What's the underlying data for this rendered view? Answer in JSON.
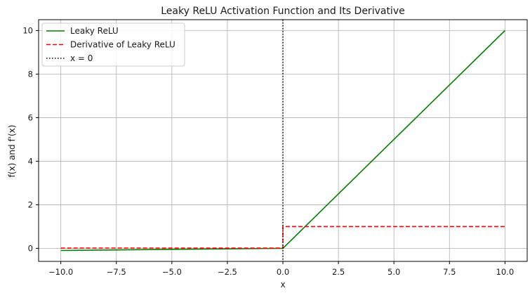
{
  "chart_data": {
    "type": "line",
    "title": "Leaky ReLU Activation Function and Its Derivative",
    "xlabel": "x",
    "ylabel": "f(x) and f'(x)",
    "xlim": [
      -11.0,
      11.0
    ],
    "ylim": [
      -0.6,
      10.5
    ],
    "grid": true,
    "legend_position": "top-left",
    "xticks": [
      -10.0,
      -7.5,
      -5.0,
      -2.5,
      0.0,
      2.5,
      5.0,
      7.5,
      10.0
    ],
    "xtick_labels": [
      "−10.0",
      "−7.5",
      "−5.0",
      "−2.5",
      "0.0",
      "2.5",
      "5.0",
      "7.5",
      "10.0"
    ],
    "yticks": [
      0,
      2,
      4,
      6,
      8,
      10
    ],
    "ytick_labels": [
      "0",
      "2",
      "4",
      "6",
      "8",
      "10"
    ],
    "series": [
      {
        "name": "Leaky ReLU",
        "color": "#008000",
        "dash": "solid",
        "x": [
          -10,
          0,
          10
        ],
        "y": [
          -0.1,
          0,
          10
        ]
      },
      {
        "name": "Derivative of Leaky ReLU",
        "color": "#ff0000",
        "dash": "dashed",
        "x": [
          -10,
          0,
          0,
          10
        ],
        "y": [
          0.01,
          0.01,
          1,
          1
        ]
      }
    ],
    "vlines": [
      {
        "name": "x = 0",
        "x": 0,
        "color": "#000000",
        "dash": "dotted"
      }
    ]
  }
}
